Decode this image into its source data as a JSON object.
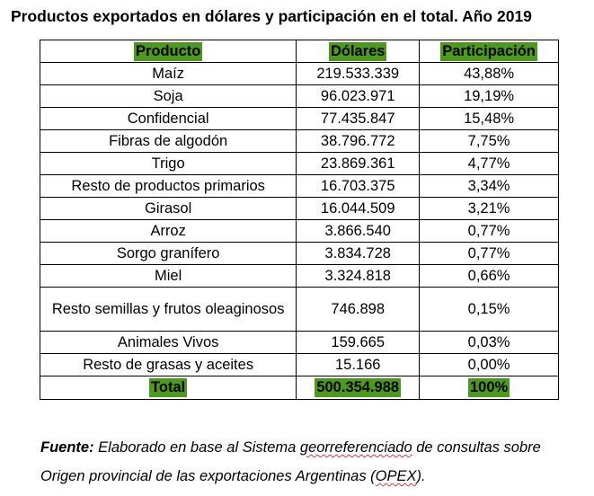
{
  "title": "Productos exportados en dólares y participación en el total. Año 2019",
  "headers": [
    "Producto",
    "Dólares",
    "Participación"
  ],
  "rows": [
    {
      "product": "Maíz",
      "dollars": "219.533.339",
      "share": "43,88%"
    },
    {
      "product": "Soja",
      "dollars": "96.023.971",
      "share": "19,19%"
    },
    {
      "product": "Confidencial",
      "dollars": "77.435.847",
      "share": "15,48%"
    },
    {
      "product": "Fibras de algodón",
      "dollars": "38.796.772",
      "share": "7,75%"
    },
    {
      "product": "Trigo",
      "dollars": "23.869.361",
      "share": "4,77%"
    },
    {
      "product": "Resto de productos primarios",
      "dollars": "16.703.375",
      "share": "3,34%"
    },
    {
      "product": "Girasol",
      "dollars": "16.044.509",
      "share": "3,21%"
    },
    {
      "product": "Arroz",
      "dollars": "3.866.540",
      "share": "0,77%"
    },
    {
      "product": "Sorgo granífero",
      "dollars": "3.834.728",
      "share": "0,77%"
    },
    {
      "product": "Miel",
      "dollars": "3.324.818",
      "share": "0,66%"
    },
    {
      "product": "Resto semillas y frutos oleaginosos",
      "dollars": "746.898",
      "share": "0,15%"
    },
    {
      "product": "Animales Vivos",
      "dollars": "159.665",
      "share": "0,03%"
    },
    {
      "product": "Resto de grasas y aceites",
      "dollars": "15.166",
      "share": "0,00%"
    }
  ],
  "total": {
    "label": "Total",
    "dollars": "500.354.988",
    "share": "100%"
  },
  "source": {
    "label": "Fuente:",
    "text_1": " Elaborado en base al Sistema ",
    "text_squiggly": "georreferenciado",
    "text_2": " de consultas sobre Origen provincial de las exportaciones Argentinas (",
    "text_abbrev": "OPEX",
    "text_3": ")."
  },
  "colors": {
    "header_highlight": "#4c9a1d",
    "spellcheck_underline": "#d23b3b"
  }
}
